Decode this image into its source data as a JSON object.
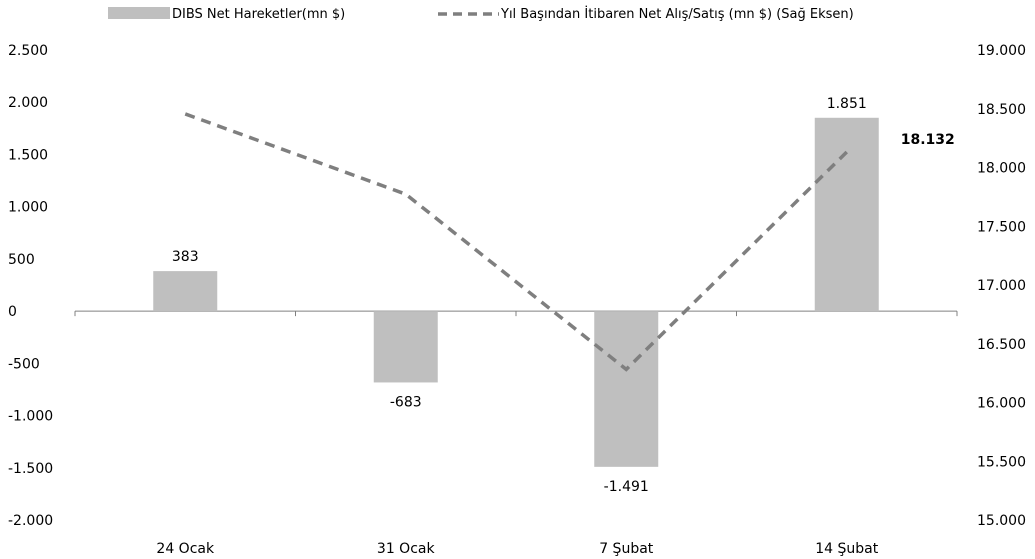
{
  "chart_data": {
    "type": "bar",
    "categories": [
      "24 Ocak",
      "31 Ocak",
      "7 Şubat",
      "14 Şubat"
    ],
    "series": [
      {
        "name": "DIBS Net Hareketler(mn $)",
        "type": "bar",
        "axis": "left",
        "values": [
          383,
          -683,
          -1491,
          1851
        ],
        "labels": [
          "383",
          "-683",
          "-1.491",
          "1.851"
        ],
        "color": "#bfbfbf"
      },
      {
        "name": "Yıl Başından İtibaren Net Alış/Satış (mn $) (Sağ Eksen)",
        "type": "line",
        "axis": "right",
        "style": "dashed",
        "values": [
          18456,
          17773,
          16282,
          18132
        ],
        "last_label": "18.132",
        "color": "#7f7f7f"
      }
    ],
    "y_left": {
      "lim": [
        -2000,
        2500
      ],
      "ticks": [
        2500,
        2000,
        1500,
        1000,
        500,
        0,
        -500,
        -1000,
        -1500,
        -2000
      ],
      "tick_labels": [
        "2.500",
        "2.000",
        "1.500",
        "1.000",
        "500",
        "0",
        "-500",
        "-1.000",
        "-1.500",
        "-2.000"
      ]
    },
    "y_right": {
      "lim": [
        15000,
        19000
      ],
      "ticks": [
        19000,
        18500,
        18000,
        17500,
        17000,
        16500,
        16000,
        15500,
        15000
      ],
      "tick_labels": [
        "19.000",
        "18.500",
        "18.000",
        "17.500",
        "17.000",
        "16.500",
        "16.000",
        "15.500",
        "15.000"
      ]
    },
    "legend": "top",
    "grid": false
  }
}
